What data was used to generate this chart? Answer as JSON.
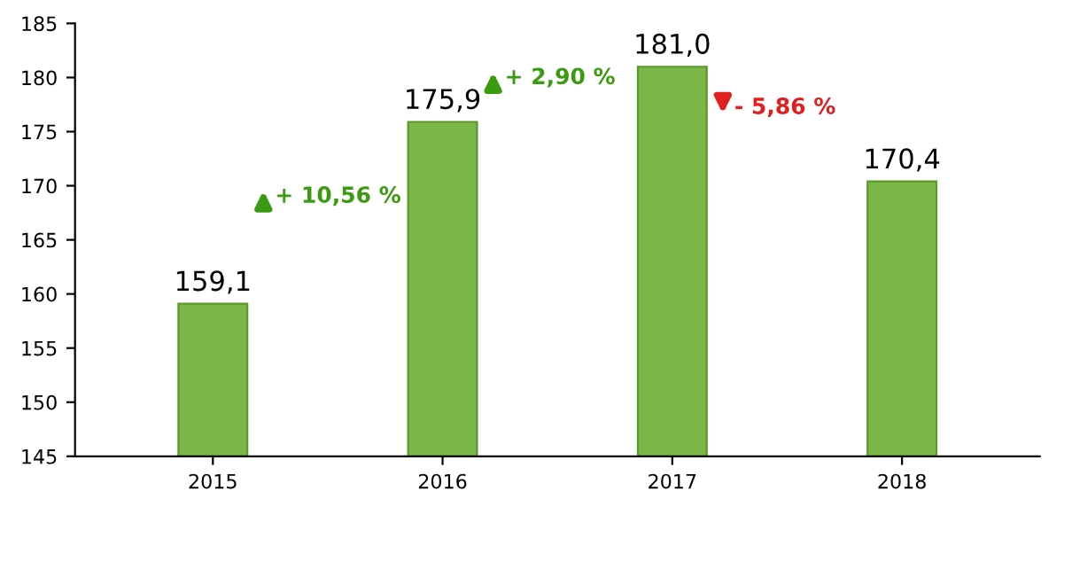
{
  "chart_data": {
    "type": "bar",
    "categories": [
      "2015",
      "2016",
      "2017",
      "2018"
    ],
    "values": [
      159.1,
      175.9,
      181.0,
      170.4
    ],
    "value_labels": [
      "159,1",
      "175,9",
      "181,0",
      "170,4"
    ],
    "color": "#7ab648",
    "ylim": [
      145,
      185
    ],
    "yticks": [
      145,
      150,
      155,
      160,
      165,
      170,
      175,
      180,
      185
    ],
    "grid": false,
    "annotations": [
      "+ 10,56 %",
      "+ 2,90 %",
      "- 5,86 %"
    ]
  }
}
